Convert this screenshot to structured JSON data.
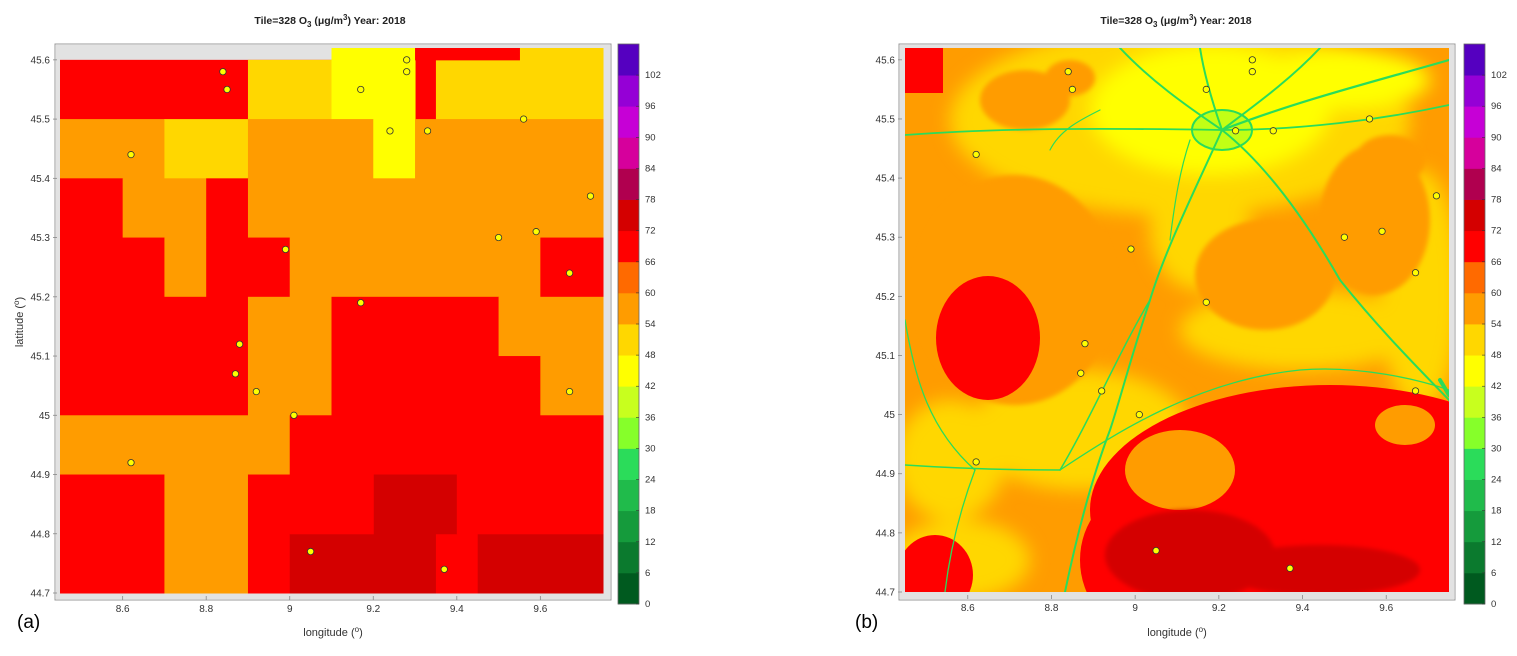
{
  "figure": {
    "caption_a": "(a)",
    "caption_b": "(b)"
  },
  "colorbar": {
    "ticks": [
      "0",
      "6",
      "12",
      "18",
      "24",
      "30",
      "36",
      "42",
      "48",
      "54",
      "60",
      "66",
      "72",
      "78",
      "84",
      "90",
      "96",
      "102"
    ],
    "colors": [
      "#005a1f",
      "#0b7a2e",
      "#159b3c",
      "#20bb4b",
      "#2bdc5a",
      "#86ff2a",
      "#c8ff1e",
      "#ffff00",
      "#ffd700",
      "#ff9c00",
      "#ff6a00",
      "#ff0000",
      "#d40000",
      "#b0004f",
      "#d6009c",
      "#c600d6",
      "#9500d6",
      "#5500c0"
    ],
    "max": 108
  },
  "chart_data": [
    {
      "type": "heatmap",
      "title": "Tile=328 O",
      "title_sub": "3",
      "title_unit": " (μg/m",
      "title_unit_sup": "3",
      "title_year": ")  Year: 2018",
      "xlabel": "longitude (",
      "xlabel_sup": "o",
      "ylabel": "latitude (",
      "ylabel_sup": "o",
      "xlim": [
        8.45,
        9.75
      ],
      "ylim": [
        44.7,
        45.62
      ],
      "x_ticks": [
        "8.6",
        "8.8",
        "9",
        "9.2",
        "9.4",
        "9.6"
      ],
      "y_ticks": [
        "44.7",
        "44.8",
        "44.9",
        "45",
        "45.1",
        "45.2",
        "45.3",
        "45.4",
        "45.5",
        "45.6"
      ],
      "cells": [
        [
          8.45,
          45.5,
          9.35,
          45.6,
          "#ff0000"
        ],
        [
          9.35,
          45.5,
          9.75,
          45.62,
          "#ffd700"
        ],
        [
          8.9,
          45.5,
          9.1,
          45.6,
          "#ffd700"
        ],
        [
          9.1,
          45.5,
          9.3,
          45.62,
          "#ffff00"
        ],
        [
          9.3,
          45.6,
          9.55,
          45.62,
          "#ff0000"
        ],
        [
          8.45,
          45.4,
          8.7,
          45.5,
          "#ff9c00"
        ],
        [
          8.7,
          45.4,
          8.9,
          45.5,
          "#ffd700"
        ],
        [
          8.9,
          45.4,
          9.2,
          45.5,
          "#ff9c00"
        ],
        [
          9.2,
          45.4,
          9.3,
          45.5,
          "#ffff00"
        ],
        [
          9.3,
          45.4,
          9.75,
          45.5,
          "#ff9c00"
        ],
        [
          8.45,
          45.3,
          8.6,
          45.4,
          "#ff0000"
        ],
        [
          8.6,
          45.3,
          8.8,
          45.4,
          "#ff9c00"
        ],
        [
          8.8,
          45.3,
          8.9,
          45.4,
          "#ff0000"
        ],
        [
          8.9,
          45.3,
          9.75,
          45.4,
          "#ff9c00"
        ],
        [
          8.45,
          45.2,
          8.7,
          45.3,
          "#ff0000"
        ],
        [
          8.7,
          45.2,
          8.8,
          45.3,
          "#ff9c00"
        ],
        [
          8.8,
          45.2,
          9.0,
          45.3,
          "#ff0000"
        ],
        [
          9.0,
          45.2,
          9.6,
          45.3,
          "#ff9c00"
        ],
        [
          9.6,
          45.2,
          9.75,
          45.3,
          "#ff0000"
        ],
        [
          8.45,
          45.0,
          8.9,
          45.2,
          "#ff0000"
        ],
        [
          8.9,
          45.0,
          9.1,
          45.2,
          "#ff9c00"
        ],
        [
          9.1,
          45.1,
          9.5,
          45.2,
          "#ff0000"
        ],
        [
          9.5,
          45.1,
          9.75,
          45.2,
          "#ff9c00"
        ],
        [
          9.1,
          45.0,
          9.6,
          45.1,
          "#ff0000"
        ],
        [
          9.6,
          45.0,
          9.75,
          45.1,
          "#ff9c00"
        ],
        [
          8.45,
          44.9,
          9.0,
          45.0,
          "#ff9c00"
        ],
        [
          9.0,
          44.9,
          9.75,
          45.0,
          "#ff0000"
        ],
        [
          8.45,
          44.7,
          8.7,
          44.9,
          "#ff0000"
        ],
        [
          8.7,
          44.7,
          8.9,
          44.9,
          "#ff9c00"
        ],
        [
          8.9,
          44.7,
          9.0,
          44.9,
          "#ff0000"
        ],
        [
          9.0,
          44.7,
          9.2,
          44.8,
          "#d40000"
        ],
        [
          9.2,
          44.7,
          9.35,
          44.8,
          "#d40000"
        ],
        [
          9.35,
          44.7,
          9.45,
          44.8,
          "#ff0000"
        ],
        [
          9.45,
          44.7,
          9.75,
          44.8,
          "#d40000"
        ],
        [
          9.2,
          44.8,
          9.4,
          44.9,
          "#d40000"
        ],
        [
          9.0,
          44.8,
          9.2,
          44.9,
          "#ff0000"
        ],
        [
          9.4,
          44.8,
          9.75,
          44.9,
          "#ff0000"
        ]
      ],
      "stations": [
        [
          8.84,
          45.58
        ],
        [
          8.85,
          45.55
        ],
        [
          9.28,
          45.6
        ],
        [
          9.28,
          45.58
        ],
        [
          9.17,
          45.55
        ],
        [
          9.24,
          45.48
        ],
        [
          9.33,
          45.48
        ],
        [
          9.56,
          45.5
        ],
        [
          8.62,
          45.44
        ],
        [
          9.72,
          45.37
        ],
        [
          8.99,
          45.28
        ],
        [
          9.5,
          45.3
        ],
        [
          9.59,
          45.31
        ],
        [
          9.67,
          45.24
        ],
        [
          9.17,
          45.19
        ],
        [
          8.88,
          45.12
        ],
        [
          8.87,
          45.07
        ],
        [
          8.92,
          45.04
        ],
        [
          9.01,
          45.0
        ],
        [
          9.67,
          45.04
        ],
        [
          8.62,
          44.92
        ],
        [
          9.05,
          44.77
        ],
        [
          9.37,
          44.74
        ]
      ]
    },
    {
      "type": "heatmap",
      "title": "Tile=328 O",
      "title_sub": "3",
      "title_unit": " (μg/m",
      "title_unit_sup": "3",
      "title_year": ")  Year: 2018",
      "xlabel": "longitude (",
      "xlabel_sup": "o",
      "xlim": [
        8.45,
        9.75
      ],
      "ylim": [
        44.7,
        45.62
      ],
      "x_ticks": [
        "8.6",
        "8.8",
        "9",
        "9.2",
        "9.4",
        "9.6"
      ],
      "y_ticks": [
        "44.7",
        "44.8",
        "44.9",
        "45",
        "45.1",
        "45.2",
        "45.3",
        "45.4",
        "45.5",
        "45.6"
      ],
      "stations": [
        [
          8.84,
          45.58
        ],
        [
          8.85,
          45.55
        ],
        [
          9.28,
          45.6
        ],
        [
          9.28,
          45.58
        ],
        [
          9.17,
          45.55
        ],
        [
          9.24,
          45.48
        ],
        [
          9.33,
          45.48
        ],
        [
          9.56,
          45.5
        ],
        [
          8.62,
          45.44
        ],
        [
          9.72,
          45.37
        ],
        [
          8.99,
          45.28
        ],
        [
          9.5,
          45.3
        ],
        [
          9.59,
          45.31
        ],
        [
          9.67,
          45.24
        ],
        [
          9.17,
          45.19
        ],
        [
          8.88,
          45.12
        ],
        [
          8.87,
          45.07
        ],
        [
          8.92,
          45.04
        ],
        [
          9.01,
          45.0
        ],
        [
          9.67,
          45.04
        ],
        [
          8.62,
          44.92
        ],
        [
          9.05,
          44.77
        ],
        [
          9.37,
          44.74
        ]
      ]
    }
  ]
}
